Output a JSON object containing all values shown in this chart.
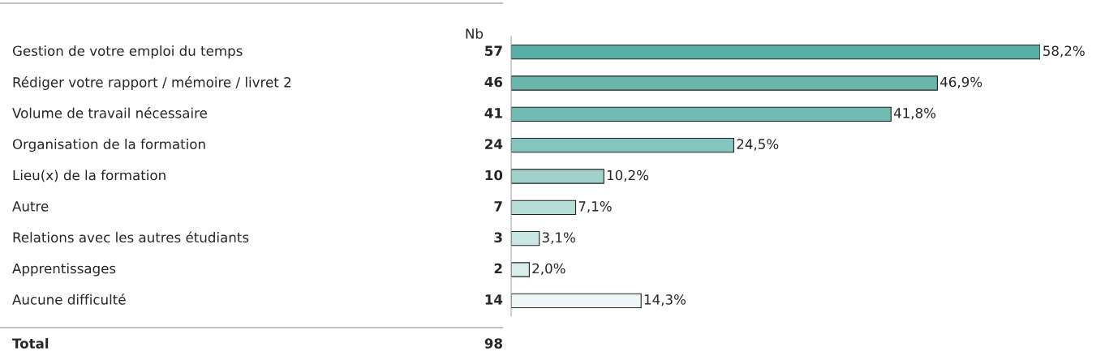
{
  "chart_data": {
    "type": "bar",
    "orientation": "horizontal",
    "categories": [
      "Gestion de votre emploi du temps",
      "Rédiger votre rapport / mémoire / livret 2",
      "Volume de travail nécessaire",
      "Organisation de la formation",
      "Lieu(x) de la formation",
      "Autre",
      "Relations avec les autres étudiants",
      "Apprentissages",
      "Aucune difficulté"
    ],
    "values": [
      58.2,
      46.9,
      41.8,
      24.5,
      10.2,
      7.1,
      3.1,
      2.0,
      14.3
    ],
    "value_labels": [
      "58,2%",
      "46,9%",
      "41,8%",
      "24,5%",
      "10,2%",
      "7,1%",
      "3,1%",
      "2,0%",
      "14,3%"
    ],
    "colors": [
      "#5aafa5",
      "#69b6ac",
      "#72bbb2",
      "#86c5bd",
      "#a0d2cb",
      "#b6ddd7",
      "#c9e6e2",
      "#d9edea",
      "#eef7f5"
    ],
    "annotations": [
      "Nb",
      "57",
      "46",
      "41",
      "24",
      "10",
      "7",
      "3",
      "2",
      "14",
      "Total",
      "98"
    ],
    "grid": false,
    "legend": false,
    "tick_labels": false
  }
}
